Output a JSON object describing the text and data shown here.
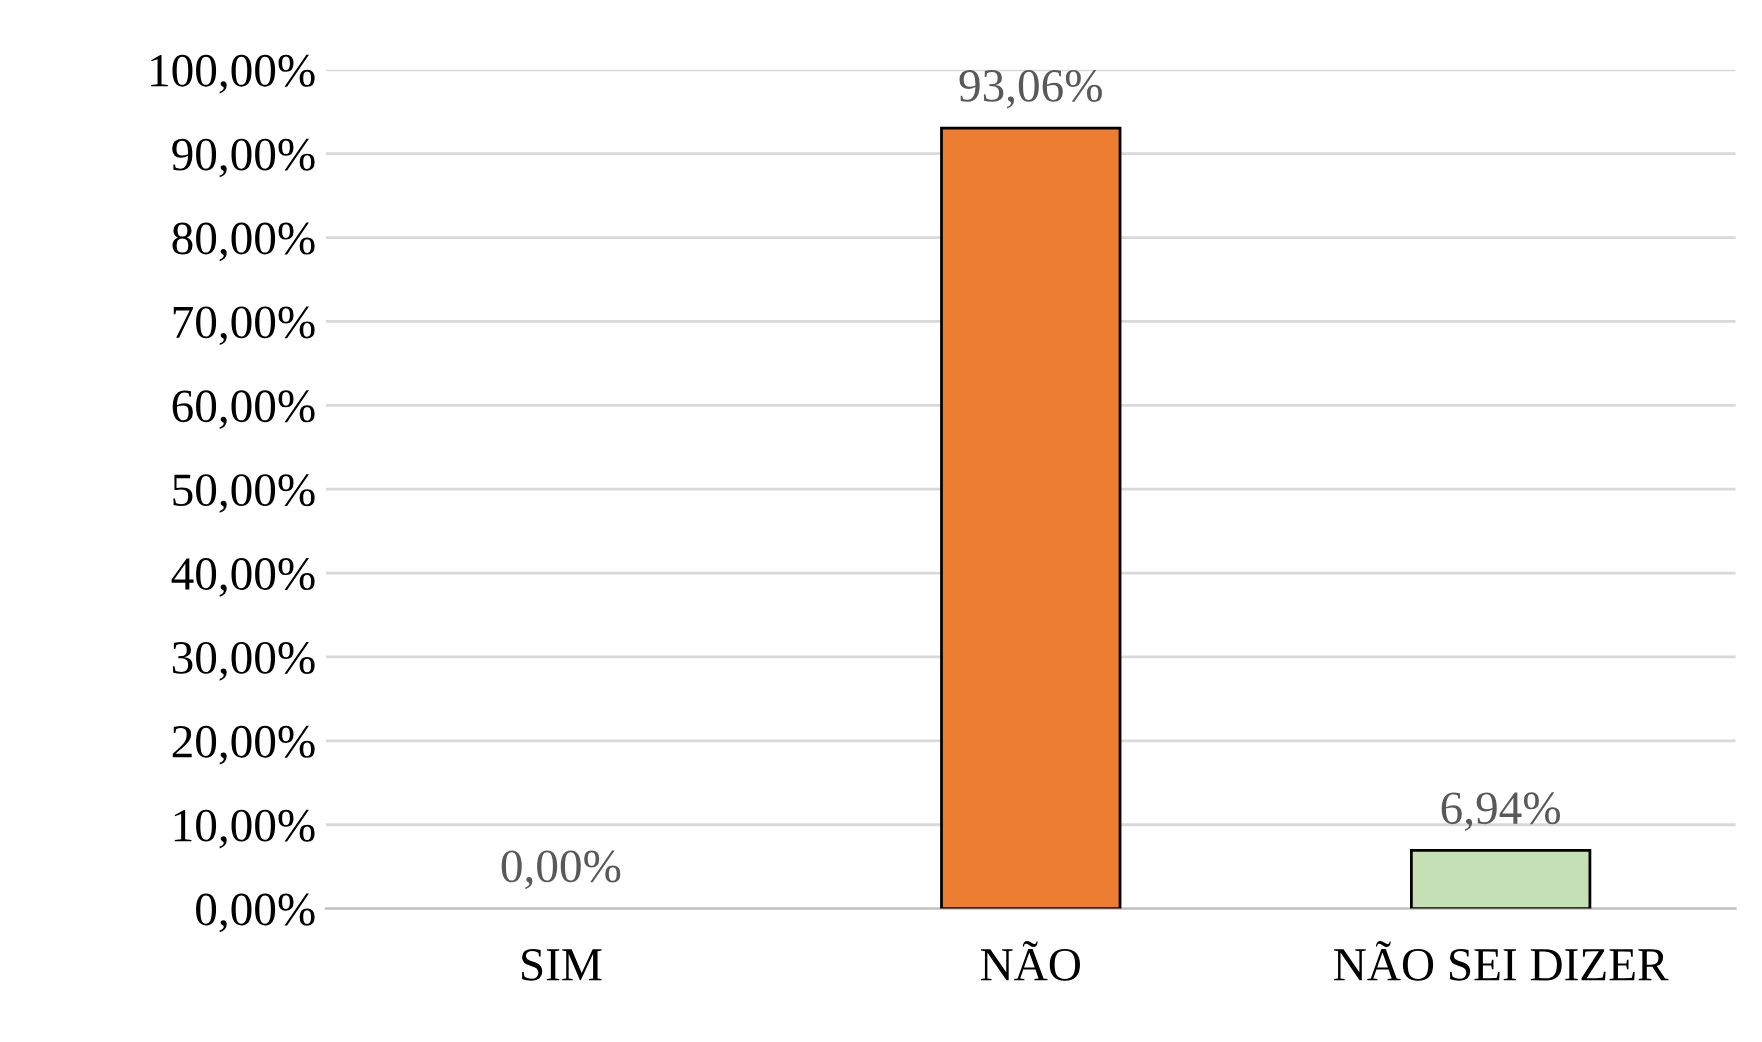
{
  "chart_data": {
    "type": "bar",
    "categories": [
      "SIM",
      "NÃO",
      "NÃO SEI DIZER"
    ],
    "values": [
      0,
      93.06,
      6.94
    ],
    "colors": [
      "#ed7d31",
      "#ed7d31",
      "#c5e0b4"
    ],
    "value_labels": [
      "0,00%",
      "93,06%",
      "6,94%"
    ],
    "ylim": [
      0,
      100
    ],
    "yticks": [
      {
        "value": 0,
        "label": "0,00%"
      },
      {
        "value": 10,
        "label": "10,00%"
      },
      {
        "value": 20,
        "label": "20,00%"
      },
      {
        "value": 30,
        "label": "30,00%"
      },
      {
        "value": 40,
        "label": "40,00%"
      },
      {
        "value": 50,
        "label": "50,00%"
      },
      {
        "value": 60,
        "label": "60,00%"
      },
      {
        "value": 70,
        "label": "70,00%"
      },
      {
        "value": 80,
        "label": "80,00%"
      },
      {
        "value": 90,
        "label": "90,00%"
      },
      {
        "value": 100,
        "label": "100,00%"
      }
    ],
    "grid": "y",
    "legend": false
  }
}
